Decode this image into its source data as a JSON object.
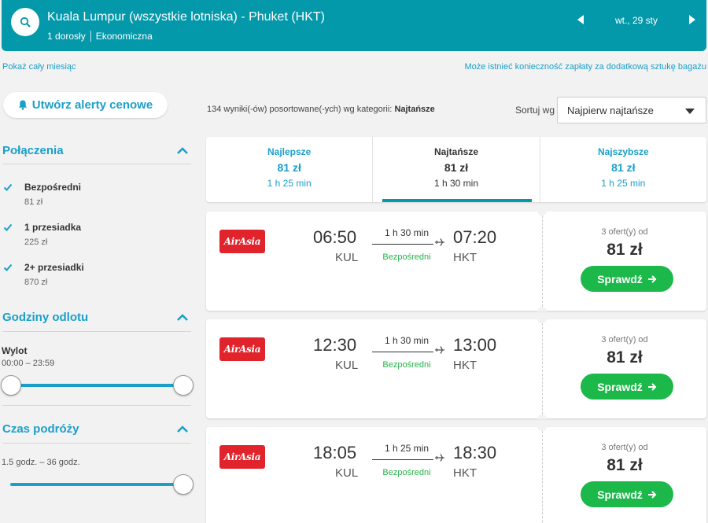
{
  "header": {
    "route": "Kuala Lumpur (wszystkie lotniska) - Phuket (HKT)",
    "passengers": "1 dorosły",
    "cabin": "Ekonomiczna",
    "date": "wt., 29 sty",
    "accent": "#0398aa"
  },
  "links": {
    "whole_month": "Pokaż cały miesiąc",
    "baggage_note": "Może istnieć konieczność zapłaty za dodatkową sztukę bagażu"
  },
  "sidebar": {
    "alert_button": "Utwórz alerty cenowe",
    "connections": {
      "title": "Połączenia",
      "items": [
        {
          "label": "Bezpośredni",
          "price": "81 zł",
          "checked": true
        },
        {
          "label": "1 przesiadka",
          "price": "225 zł",
          "checked": true
        },
        {
          "label": "2+ przesiadki",
          "price": "870 zł",
          "checked": true
        }
      ]
    },
    "departure": {
      "title": "Godziny odlotu",
      "label": "Wylot",
      "range": "00:00 – 23:59"
    },
    "duration": {
      "title": "Czas podróży",
      "range": "1.5 godz. – 36 godz."
    }
  },
  "results": {
    "count_text": "134 wyniki(-ów) posortowane(-ych) wg kategorii:",
    "count_category": "Najtańsze",
    "sort_label": "Sortuj wg",
    "sort_value": "Najpierw najtańsze"
  },
  "tabs": [
    {
      "name": "Najlepsze",
      "price": "81 zł",
      "duration": "1 h 25 min",
      "active": false
    },
    {
      "name": "Najtańsze",
      "price": "81 zł",
      "duration": "1 h 30 min",
      "active": true
    },
    {
      "name": "Najszybsze",
      "price": "81 zł",
      "duration": "1 h 25 min",
      "active": false
    }
  ],
  "flights": [
    {
      "airline": "AirAsia",
      "dep_time": "06:50",
      "dep_code": "KUL",
      "arr_time": "07:20",
      "arr_code": "HKT",
      "duration": "1 h 30 min",
      "stops": "Bezpośredni",
      "offers": "3 ofert(y) od",
      "price": "81 zł",
      "button": "Sprawdź"
    },
    {
      "airline": "AirAsia",
      "dep_time": "12:30",
      "dep_code": "KUL",
      "arr_time": "13:00",
      "arr_code": "HKT",
      "duration": "1 h 30 min",
      "stops": "Bezpośredni",
      "offers": "3 ofert(y) od",
      "price": "81 zł",
      "button": "Sprawdź"
    },
    {
      "airline": "AirAsia",
      "dep_time": "18:05",
      "dep_code": "KUL",
      "arr_time": "18:30",
      "arr_code": "HKT",
      "duration": "1 h 25 min",
      "stops": "Bezpośredni",
      "offers": "3 ofert(y) od",
      "price": "81 zł",
      "button": "Sprawdź"
    }
  ],
  "colors": {
    "primary": "#0398aa",
    "link": "#1a9fc9",
    "button_green": "#1cb84a",
    "direct_green": "#27b34b",
    "airasia_red": "#e1232b"
  }
}
